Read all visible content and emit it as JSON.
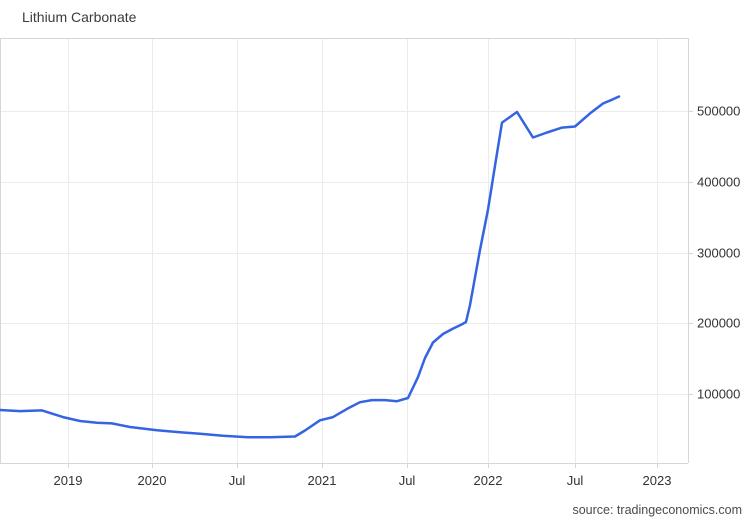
{
  "page": {
    "title": "Lithium Carbonate",
    "source_text": "source: tradingeconomics.com"
  },
  "colors": {
    "background": "#ffffff",
    "line": "#3564e2",
    "grid": "#ebebeb",
    "frame": "#d6d6d6",
    "tick_text": "#333333",
    "title_text": "#3c3c3c",
    "source_text": "#4b4b4b"
  },
  "chart_data": {
    "type": "line",
    "title": "Lithium Carbonate",
    "legend": false,
    "grid": true,
    "x_axis": {
      "ticks": [
        {
          "label": "2019",
          "pos": 0.0988
        },
        {
          "label": "2020",
          "pos": 0.2209
        },
        {
          "label": "Jul",
          "pos": 0.3445
        },
        {
          "label": "2021",
          "pos": 0.468
        },
        {
          "label": "Jul",
          "pos": 0.5916
        },
        {
          "label": "2022",
          "pos": 0.7093
        },
        {
          "label": "Jul",
          "pos": 0.8358
        },
        {
          "label": "2023",
          "pos": 0.9549
        }
      ]
    },
    "y_axis": {
      "position": "right",
      "min": 0,
      "max": 600000,
      "ticks": [
        {
          "label": "100000",
          "value": 100000
        },
        {
          "label": "200000",
          "value": 200000
        },
        {
          "label": "300000",
          "value": 300000
        },
        {
          "label": "400000",
          "value": 400000
        },
        {
          "label": "500000",
          "value": 500000
        }
      ]
    },
    "series": [
      {
        "name": "Lithium Carbonate",
        "points": [
          [
            0.0,
            77500
          ],
          [
            0.0291,
            76000
          ],
          [
            0.061,
            77000
          ],
          [
            0.0916,
            67500
          ],
          [
            0.1163,
            62000
          ],
          [
            0.141,
            59500
          ],
          [
            0.1628,
            58500
          ],
          [
            0.189,
            53500
          ],
          [
            0.2282,
            49000
          ],
          [
            0.2616,
            46000
          ],
          [
            0.2907,
            44000
          ],
          [
            0.3241,
            41000
          ],
          [
            0.3605,
            39000
          ],
          [
            0.3924,
            39000
          ],
          [
            0.4288,
            40000
          ],
          [
            0.4433,
            48500
          ],
          [
            0.4651,
            63000
          ],
          [
            0.484,
            67500
          ],
          [
            0.5044,
            79000
          ],
          [
            0.5233,
            88500
          ],
          [
            0.5407,
            91500
          ],
          [
            0.5596,
            91500
          ],
          [
            0.5771,
            90000
          ],
          [
            0.593,
            94500
          ],
          [
            0.6076,
            124000
          ],
          [
            0.6177,
            151000
          ],
          [
            0.6294,
            173000
          ],
          [
            0.6439,
            185000
          ],
          [
            0.657,
            192000
          ],
          [
            0.6701,
            198000
          ],
          [
            0.6773,
            202000
          ],
          [
            0.6831,
            226000
          ],
          [
            0.6977,
            304000
          ],
          [
            0.7093,
            361000
          ],
          [
            0.7195,
            423000
          ],
          [
            0.7297,
            484000
          ],
          [
            0.7515,
            499000
          ],
          [
            0.7747,
            463000
          ],
          [
            0.7951,
            470000
          ],
          [
            0.8169,
            477000
          ],
          [
            0.8358,
            478500
          ],
          [
            0.8576,
            497000
          ],
          [
            0.8765,
            511000
          ],
          [
            0.891,
            517000
          ],
          [
            0.8997,
            521000
          ]
        ]
      }
    ]
  }
}
